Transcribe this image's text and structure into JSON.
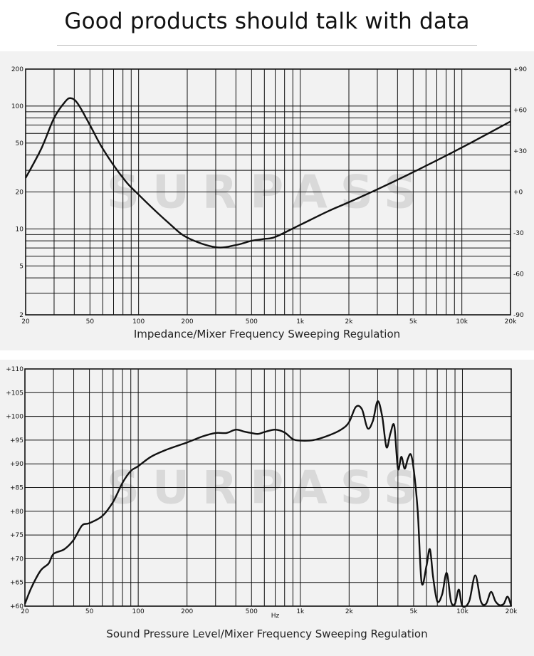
{
  "header": {
    "title": "Good products should talk with data"
  },
  "watermark": "SURPASS",
  "colors": {
    "curve": "#111111",
    "grid": "#111111",
    "background": "#f2f2f2",
    "watermark": "#d9d9d9"
  },
  "chart_data": [
    {
      "type": "line",
      "title": "Impedance/Mixer Frequency Sweeping Regulation",
      "x_scale": "log",
      "y_scale": "log",
      "xlim": [
        20,
        20000
      ],
      "ylim": [
        2,
        200
      ],
      "grid": true,
      "x_ticks": [
        20,
        50,
        100,
        200,
        500,
        1000,
        2000,
        5000,
        10000,
        20000
      ],
      "x_tick_labels": [
        "20",
        "50",
        "100",
        "200",
        "500",
        "1k",
        "2k",
        "5k",
        "10k",
        "20k"
      ],
      "y_ticks": [
        2,
        5,
        10,
        20,
        50,
        100,
        200
      ],
      "y_tick_labels": [
        "2",
        "5",
        "10",
        "20",
        "50",
        "100",
        "200"
      ],
      "y2_tick_labels": [
        "+90",
        "+60",
        "+30",
        "+0",
        "-30",
        "-60",
        "-90"
      ],
      "series": [
        {
          "x": [
            20,
            25,
            30,
            35,
            38,
            42,
            50,
            60,
            80,
            100,
            150,
            200,
            300,
            400,
            500,
            600,
            700,
            1000,
            1500,
            2000,
            3000,
            5000,
            10000,
            20000
          ],
          "y": [
            26,
            45,
            80,
            108,
            116,
            105,
            70,
            45,
            26,
            19,
            11.5,
            8.5,
            7.1,
            7.4,
            8.0,
            8.3,
            8.6,
            10.8,
            14,
            16.5,
            21,
            29,
            46,
            75
          ]
        }
      ]
    },
    {
      "type": "line",
      "title": "Sound Pressure Level/Mixer Frequency Sweeping Regulation",
      "x_scale": "log",
      "xlim": [
        20,
        20000
      ],
      "ylim": [
        60,
        110
      ],
      "grid": true,
      "xlabel": "Hz",
      "x_ticks": [
        20,
        50,
        100,
        200,
        500,
        1000,
        2000,
        5000,
        10000,
        20000
      ],
      "x_tick_labels": [
        "20",
        "50",
        "100",
        "200",
        "500",
        "1k",
        "2k",
        "5k",
        "10k",
        "20k"
      ],
      "y_ticks": [
        60,
        65,
        70,
        75,
        80,
        85,
        90,
        95,
        100,
        105,
        110
      ],
      "y_tick_labels": [
        "+60",
        "+65",
        "+70",
        "+75",
        "+80",
        "+85",
        "+90",
        "+95",
        "+100",
        "+105",
        "+110"
      ],
      "series": [
        {
          "x": [
            20,
            22,
            25,
            28,
            30,
            35,
            40,
            45,
            50,
            60,
            70,
            80,
            90,
            100,
            120,
            150,
            200,
            250,
            300,
            350,
            400,
            450,
            500,
            550,
            600,
            700,
            800,
            900,
            1000,
            1200,
            1500,
            1800,
            2000,
            2200,
            2400,
            2600,
            2800,
            3000,
            3200,
            3400,
            3600,
            3800,
            4000,
            4200,
            4400,
            4600,
            4800,
            5000,
            5300,
            5600,
            6000,
            6300,
            6600,
            7000,
            7500,
            8000,
            8500,
            9000,
            9500,
            10000,
            11000,
            12000,
            13000,
            14000,
            15000,
            16000,
            17000,
            18000,
            19000,
            20000
          ],
          "y": [
            60.5,
            64,
            67.5,
            69,
            71,
            72,
            74,
            77,
            77.5,
            79,
            82,
            86,
            88.5,
            89.5,
            91.5,
            93,
            94.5,
            95.8,
            96.5,
            96.5,
            97.2,
            96.8,
            96.5,
            96.3,
            96.7,
            97.2,
            96.6,
            95.2,
            94.9,
            95.0,
            96.0,
            97.3,
            98.8,
            102.0,
            101.5,
            97.5,
            99.0,
            103.2,
            100.0,
            93.5,
            96.5,
            98.0,
            89.0,
            91.5,
            89.0,
            91.0,
            92.0,
            89.0,
            80.0,
            65.0,
            68.5,
            72.0,
            66.0,
            61.0,
            62.5,
            67.0,
            61.0,
            60.5,
            63.5,
            60.0,
            61.0,
            66.5,
            61.0,
            60.5,
            63.0,
            61.0,
            60.2,
            60.5,
            62.0,
            60.0
          ]
        }
      ]
    }
  ]
}
